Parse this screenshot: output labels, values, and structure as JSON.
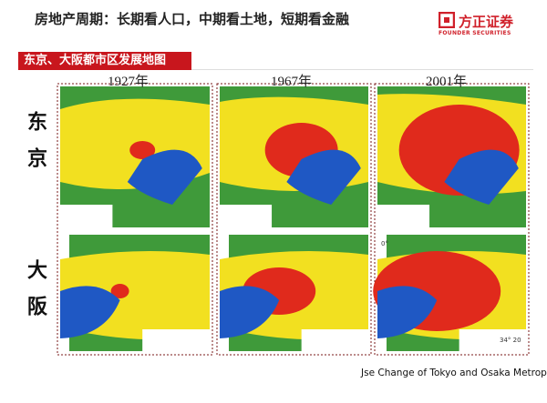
{
  "header": {
    "title": "房地产周期：长期看人口，中期看土地，短期看金融",
    "logo": "方正证券",
    "logo_en": "FOUNDER SECURITIES"
  },
  "section": "东京、大阪都市区发展地图",
  "years": [
    "1927年",
    "1967年",
    "2001年"
  ],
  "rows": [
    {
      "label": "东京"
    },
    {
      "label": "大阪"
    }
  ],
  "map_marks": [
    "0°",
    "34° 20"
  ],
  "caption": "Jse Change of Tokyo and Osaka Metropolitan Areas，方正证券研究所"
}
